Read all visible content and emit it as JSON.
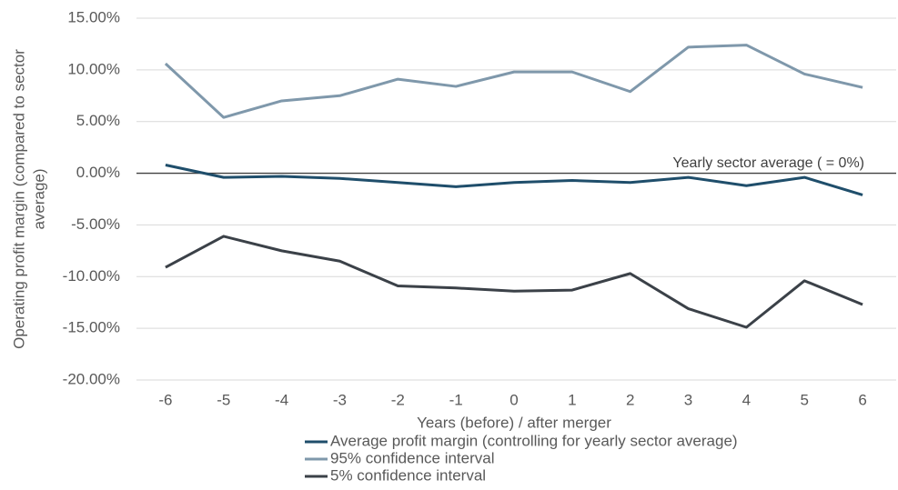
{
  "chart_data": {
    "type": "line",
    "y_label_lines": [
      "Operating profit margin (compared to sector",
      "average)"
    ],
    "x_label": "Years (before) / after merger",
    "annotation": "Yearly sector average ( = 0%)",
    "categories": [
      "-6",
      "-5",
      "-4",
      "-3",
      "-2",
      "-1",
      "0",
      "1",
      "2",
      "3",
      "4",
      "5",
      "6"
    ],
    "series": [
      {
        "name": "Average profit margin (controlling for yearly sector average)",
        "color": "#1f4e6b",
        "values": [
          0.8,
          -0.4,
          -0.3,
          -0.5,
          -0.9,
          -1.3,
          -0.9,
          -0.7,
          -0.9,
          -0.4,
          -1.2,
          -0.4,
          -2.1
        ]
      },
      {
        "name": "95% confidence interval",
        "color": "#7f98ab",
        "values": [
          10.6,
          5.4,
          7.0,
          7.5,
          9.1,
          8.4,
          9.8,
          9.8,
          7.9,
          12.2,
          12.4,
          9.6,
          8.3
        ]
      },
      {
        "name": "5% confidence interval",
        "color": "#3b4148",
        "values": [
          -9.1,
          -6.1,
          -7.5,
          -8.5,
          -10.9,
          -11.1,
          -11.4,
          -11.3,
          -9.7,
          -13.1,
          -14.9,
          -10.4,
          -12.7
        ]
      }
    ],
    "ylim": [
      -20,
      15
    ],
    "yticks": [
      {
        "value": -20,
        "label": "-20.00%"
      },
      {
        "value": -15,
        "label": "-15.00%"
      },
      {
        "value": -10,
        "label": "-10.00%"
      },
      {
        "value": -5,
        "label": "-5.00%"
      },
      {
        "value": 0,
        "label": "0.00%"
      },
      {
        "value": 5,
        "label": "5.00%"
      },
      {
        "value": 10,
        "label": "10.00%"
      },
      {
        "value": 15,
        "label": "15.00%"
      }
    ],
    "grid": true
  }
}
